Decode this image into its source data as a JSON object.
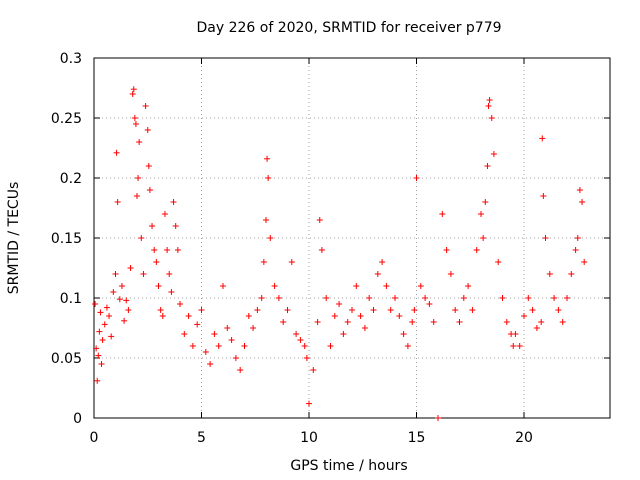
{
  "chart_data": {
    "type": "scatter",
    "title": "Day 226 of 2020, SRMTID for receiver p779",
    "xlabel": "GPS time / hours",
    "ylabel": "SRMTID / TECUs",
    "xlim": [
      0,
      24
    ],
    "ylim": [
      0,
      0.3
    ],
    "xticks": [
      "0",
      "5",
      "10",
      "15",
      "20"
    ],
    "xtick_values": [
      0,
      5,
      10,
      15,
      20
    ],
    "yticks": [
      "0",
      "0.05",
      "0.1",
      "0.15",
      "0.2",
      "0.25",
      "0.3"
    ],
    "ytick_values": [
      0,
      0.05,
      0.1,
      0.15,
      0.2,
      0.25,
      0.3
    ],
    "grid": true,
    "marker": "+",
    "color": "#ff0000",
    "series": [
      {
        "name": "SRMTID",
        "x": [
          0.05,
          0.1,
          0.15,
          0.2,
          0.25,
          0.3,
          0.35,
          0.4,
          0.5,
          0.6,
          0.7,
          0.8,
          0.9,
          1.0,
          1.05,
          1.1,
          1.2,
          1.3,
          1.4,
          1.5,
          1.6,
          1.7,
          1.8,
          1.85,
          1.9,
          1.95,
          2.0,
          2.05,
          2.1,
          2.2,
          2.3,
          2.4,
          2.5,
          2.55,
          2.6,
          2.7,
          2.8,
          2.9,
          3.0,
          3.1,
          3.2,
          3.3,
          3.4,
          3.5,
          3.6,
          3.7,
          3.8,
          3.9,
          4.0,
          4.2,
          4.4,
          4.6,
          4.8,
          5.0,
          5.2,
          5.4,
          5.6,
          5.8,
          6.0,
          6.2,
          6.4,
          6.6,
          6.8,
          7.0,
          7.2,
          7.4,
          7.6,
          7.8,
          7.9,
          8.0,
          8.05,
          8.1,
          8.2,
          8.4,
          8.6,
          8.8,
          9.0,
          9.2,
          9.4,
          9.6,
          9.8,
          9.9,
          10.0,
          10.2,
          10.4,
          10.5,
          10.6,
          10.8,
          11.0,
          11.2,
          11.4,
          11.6,
          11.8,
          12.0,
          12.2,
          12.4,
          12.6,
          12.8,
          13.0,
          13.2,
          13.4,
          13.6,
          13.8,
          14.0,
          14.2,
          14.4,
          14.6,
          14.8,
          14.9,
          15.0,
          15.2,
          15.4,
          15.6,
          15.8,
          16.0,
          16.2,
          16.4,
          16.6,
          16.8,
          17.0,
          17.2,
          17.4,
          17.6,
          17.8,
          18.0,
          18.1,
          18.2,
          18.3,
          18.35,
          18.4,
          18.5,
          18.6,
          18.8,
          19.0,
          19.2,
          19.4,
          19.5,
          19.6,
          19.8,
          20.0,
          20.2,
          20.4,
          20.6,
          20.8,
          20.85,
          20.9,
          21.0,
          21.2,
          21.4,
          21.6,
          21.8,
          22.0,
          22.2,
          22.4,
          22.5,
          22.6,
          22.7,
          22.8
        ],
        "y": [
          0.095,
          0.058,
          0.031,
          0.052,
          0.072,
          0.088,
          0.045,
          0.065,
          0.078,
          0.092,
          0.085,
          0.068,
          0.105,
          0.12,
          0.221,
          0.18,
          0.099,
          0.11,
          0.081,
          0.098,
          0.09,
          0.125,
          0.27,
          0.274,
          0.25,
          0.245,
          0.185,
          0.2,
          0.23,
          0.15,
          0.12,
          0.26,
          0.24,
          0.21,
          0.19,
          0.16,
          0.14,
          0.13,
          0.11,
          0.09,
          0.085,
          0.17,
          0.14,
          0.12,
          0.105,
          0.18,
          0.16,
          0.14,
          0.095,
          0.07,
          0.085,
          0.06,
          0.078,
          0.09,
          0.055,
          0.045,
          0.07,
          0.06,
          0.11,
          0.075,
          0.065,
          0.05,
          0.04,
          0.06,
          0.085,
          0.075,
          0.09,
          0.1,
          0.13,
          0.165,
          0.216,
          0.2,
          0.15,
          0.11,
          0.1,
          0.08,
          0.09,
          0.13,
          0.07,
          0.065,
          0.06,
          0.05,
          0.012,
          0.04,
          0.08,
          0.165,
          0.14,
          0.1,
          0.06,
          0.085,
          0.095,
          0.07,
          0.08,
          0.09,
          0.11,
          0.085,
          0.075,
          0.1,
          0.09,
          0.12,
          0.13,
          0.11,
          0.09,
          0.1,
          0.085,
          0.07,
          0.06,
          0.08,
          0.09,
          0.2,
          0.11,
          0.1,
          0.095,
          0.08,
          0.0,
          0.17,
          0.14,
          0.12,
          0.09,
          0.08,
          0.1,
          0.11,
          0.09,
          0.14,
          0.17,
          0.15,
          0.18,
          0.21,
          0.26,
          0.265,
          0.25,
          0.22,
          0.13,
          0.1,
          0.08,
          0.07,
          0.06,
          0.07,
          0.06,
          0.085,
          0.1,
          0.09,
          0.075,
          0.08,
          0.233,
          0.185,
          0.15,
          0.12,
          0.1,
          0.09,
          0.08,
          0.1,
          0.12,
          0.14,
          0.15,
          0.19,
          0.18,
          0.13
        ]
      }
    ]
  }
}
